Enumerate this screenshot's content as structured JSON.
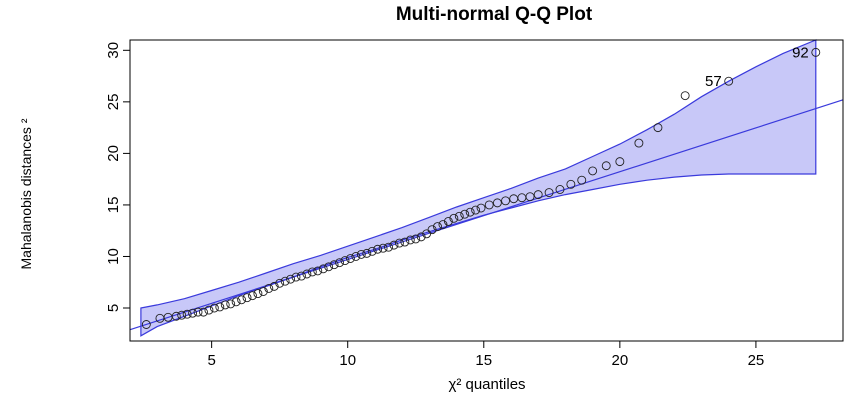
{
  "chart_data": {
    "type": "scatter",
    "title": "Multi-normal Q-Q Plot",
    "xlabel": "χ² quantiles",
    "ylabel": "Mahalanobis distances ²",
    "xlim": [
      2.0,
      28.2
    ],
    "ylim": [
      1.8,
      31.0
    ],
    "x_ticks": [
      5,
      10,
      15,
      20,
      25
    ],
    "y_ticks": [
      5,
      10,
      15,
      20,
      25,
      30
    ],
    "colors": {
      "band_fill": "#c8c8f8",
      "band_line": "#3a3adc",
      "ref_line": "#3a3adc",
      "points": "#222222"
    },
    "reference_line": {
      "x0": 2.0,
      "y0": 2.9,
      "x1": 28.2,
      "y1": 25.2
    },
    "confidence_band": {
      "x": [
        2.4,
        3,
        4,
        5,
        6,
        7,
        8,
        9,
        10,
        11,
        12,
        13,
        14,
        15,
        16,
        17,
        18,
        19,
        20,
        21,
        22,
        23,
        24,
        25,
        26,
        27.2
      ],
      "upper": [
        5.0,
        5.3,
        5.9,
        6.7,
        7.5,
        8.4,
        9.3,
        10.1,
        11.0,
        11.9,
        12.8,
        13.8,
        14.8,
        15.7,
        16.6,
        17.6,
        18.5,
        19.7,
        20.9,
        22.3,
        23.8,
        25.5,
        27.0,
        28.4,
        29.7,
        31.0
      ],
      "lower": [
        2.3,
        3.2,
        4.2,
        5.2,
        6.2,
        7.1,
        8.0,
        9.0,
        9.9,
        10.7,
        11.6,
        12.4,
        13.2,
        14.0,
        14.7,
        15.4,
        16.0,
        16.5,
        17.0,
        17.4,
        17.7,
        17.9,
        18.0,
        18.0,
        18.0,
        18.0
      ]
    },
    "points": [
      {
        "x": 2.6,
        "y": 3.4
      },
      {
        "x": 3.1,
        "y": 4.0
      },
      {
        "x": 3.4,
        "y": 4.1
      },
      {
        "x": 3.7,
        "y": 4.2
      },
      {
        "x": 3.9,
        "y": 4.3
      },
      {
        "x": 4.1,
        "y": 4.4
      },
      {
        "x": 4.3,
        "y": 4.5
      },
      {
        "x": 4.5,
        "y": 4.6
      },
      {
        "x": 4.7,
        "y": 4.6
      },
      {
        "x": 4.9,
        "y": 4.8
      },
      {
        "x": 5.1,
        "y": 5.0
      },
      {
        "x": 5.3,
        "y": 5.1
      },
      {
        "x": 5.5,
        "y": 5.3
      },
      {
        "x": 5.7,
        "y": 5.4
      },
      {
        "x": 5.9,
        "y": 5.6
      },
      {
        "x": 6.1,
        "y": 5.8
      },
      {
        "x": 6.3,
        "y": 6.0
      },
      {
        "x": 6.5,
        "y": 6.2
      },
      {
        "x": 6.7,
        "y": 6.4
      },
      {
        "x": 6.9,
        "y": 6.6
      },
      {
        "x": 7.1,
        "y": 6.9
      },
      {
        "x": 7.3,
        "y": 7.1
      },
      {
        "x": 7.5,
        "y": 7.4
      },
      {
        "x": 7.7,
        "y": 7.6
      },
      {
        "x": 7.9,
        "y": 7.8
      },
      {
        "x": 8.1,
        "y": 8.0
      },
      {
        "x": 8.3,
        "y": 8.1
      },
      {
        "x": 8.5,
        "y": 8.3
      },
      {
        "x": 8.7,
        "y": 8.5
      },
      {
        "x": 8.9,
        "y": 8.6
      },
      {
        "x": 9.1,
        "y": 8.8
      },
      {
        "x": 9.3,
        "y": 9.0
      },
      {
        "x": 9.5,
        "y": 9.2
      },
      {
        "x": 9.7,
        "y": 9.4
      },
      {
        "x": 9.9,
        "y": 9.6
      },
      {
        "x": 10.1,
        "y": 9.8
      },
      {
        "x": 10.3,
        "y": 10.0
      },
      {
        "x": 10.5,
        "y": 10.2
      },
      {
        "x": 10.7,
        "y": 10.3
      },
      {
        "x": 10.9,
        "y": 10.5
      },
      {
        "x": 11.1,
        "y": 10.7
      },
      {
        "x": 11.3,
        "y": 10.8
      },
      {
        "x": 11.5,
        "y": 10.9
      },
      {
        "x": 11.7,
        "y": 11.1
      },
      {
        "x": 11.9,
        "y": 11.3
      },
      {
        "x": 12.1,
        "y": 11.4
      },
      {
        "x": 12.3,
        "y": 11.6
      },
      {
        "x": 12.5,
        "y": 11.7
      },
      {
        "x": 12.7,
        "y": 11.9
      },
      {
        "x": 12.9,
        "y": 12.2
      },
      {
        "x": 13.1,
        "y": 12.6
      },
      {
        "x": 13.3,
        "y": 12.9
      },
      {
        "x": 13.5,
        "y": 13.1
      },
      {
        "x": 13.7,
        "y": 13.4
      },
      {
        "x": 13.9,
        "y": 13.7
      },
      {
        "x": 14.1,
        "y": 13.9
      },
      {
        "x": 14.3,
        "y": 14.1
      },
      {
        "x": 14.5,
        "y": 14.3
      },
      {
        "x": 14.7,
        "y": 14.5
      },
      {
        "x": 14.9,
        "y": 14.7
      },
      {
        "x": 15.2,
        "y": 15.0
      },
      {
        "x": 15.5,
        "y": 15.2
      },
      {
        "x": 15.8,
        "y": 15.4
      },
      {
        "x": 16.1,
        "y": 15.6
      },
      {
        "x": 16.4,
        "y": 15.7
      },
      {
        "x": 16.7,
        "y": 15.8
      },
      {
        "x": 17.0,
        "y": 16.0
      },
      {
        "x": 17.4,
        "y": 16.2
      },
      {
        "x": 17.8,
        "y": 16.5
      },
      {
        "x": 18.2,
        "y": 17.0
      },
      {
        "x": 18.6,
        "y": 17.4
      },
      {
        "x": 19.0,
        "y": 18.3
      },
      {
        "x": 19.5,
        "y": 18.8
      },
      {
        "x": 20.0,
        "y": 19.2
      },
      {
        "x": 20.7,
        "y": 21.0
      },
      {
        "x": 21.4,
        "y": 22.5
      },
      {
        "x": 22.4,
        "y": 25.6
      },
      {
        "x": 24.0,
        "y": 27.0,
        "label": "57"
      },
      {
        "x": 27.2,
        "y": 29.8,
        "label": "92"
      }
    ]
  }
}
